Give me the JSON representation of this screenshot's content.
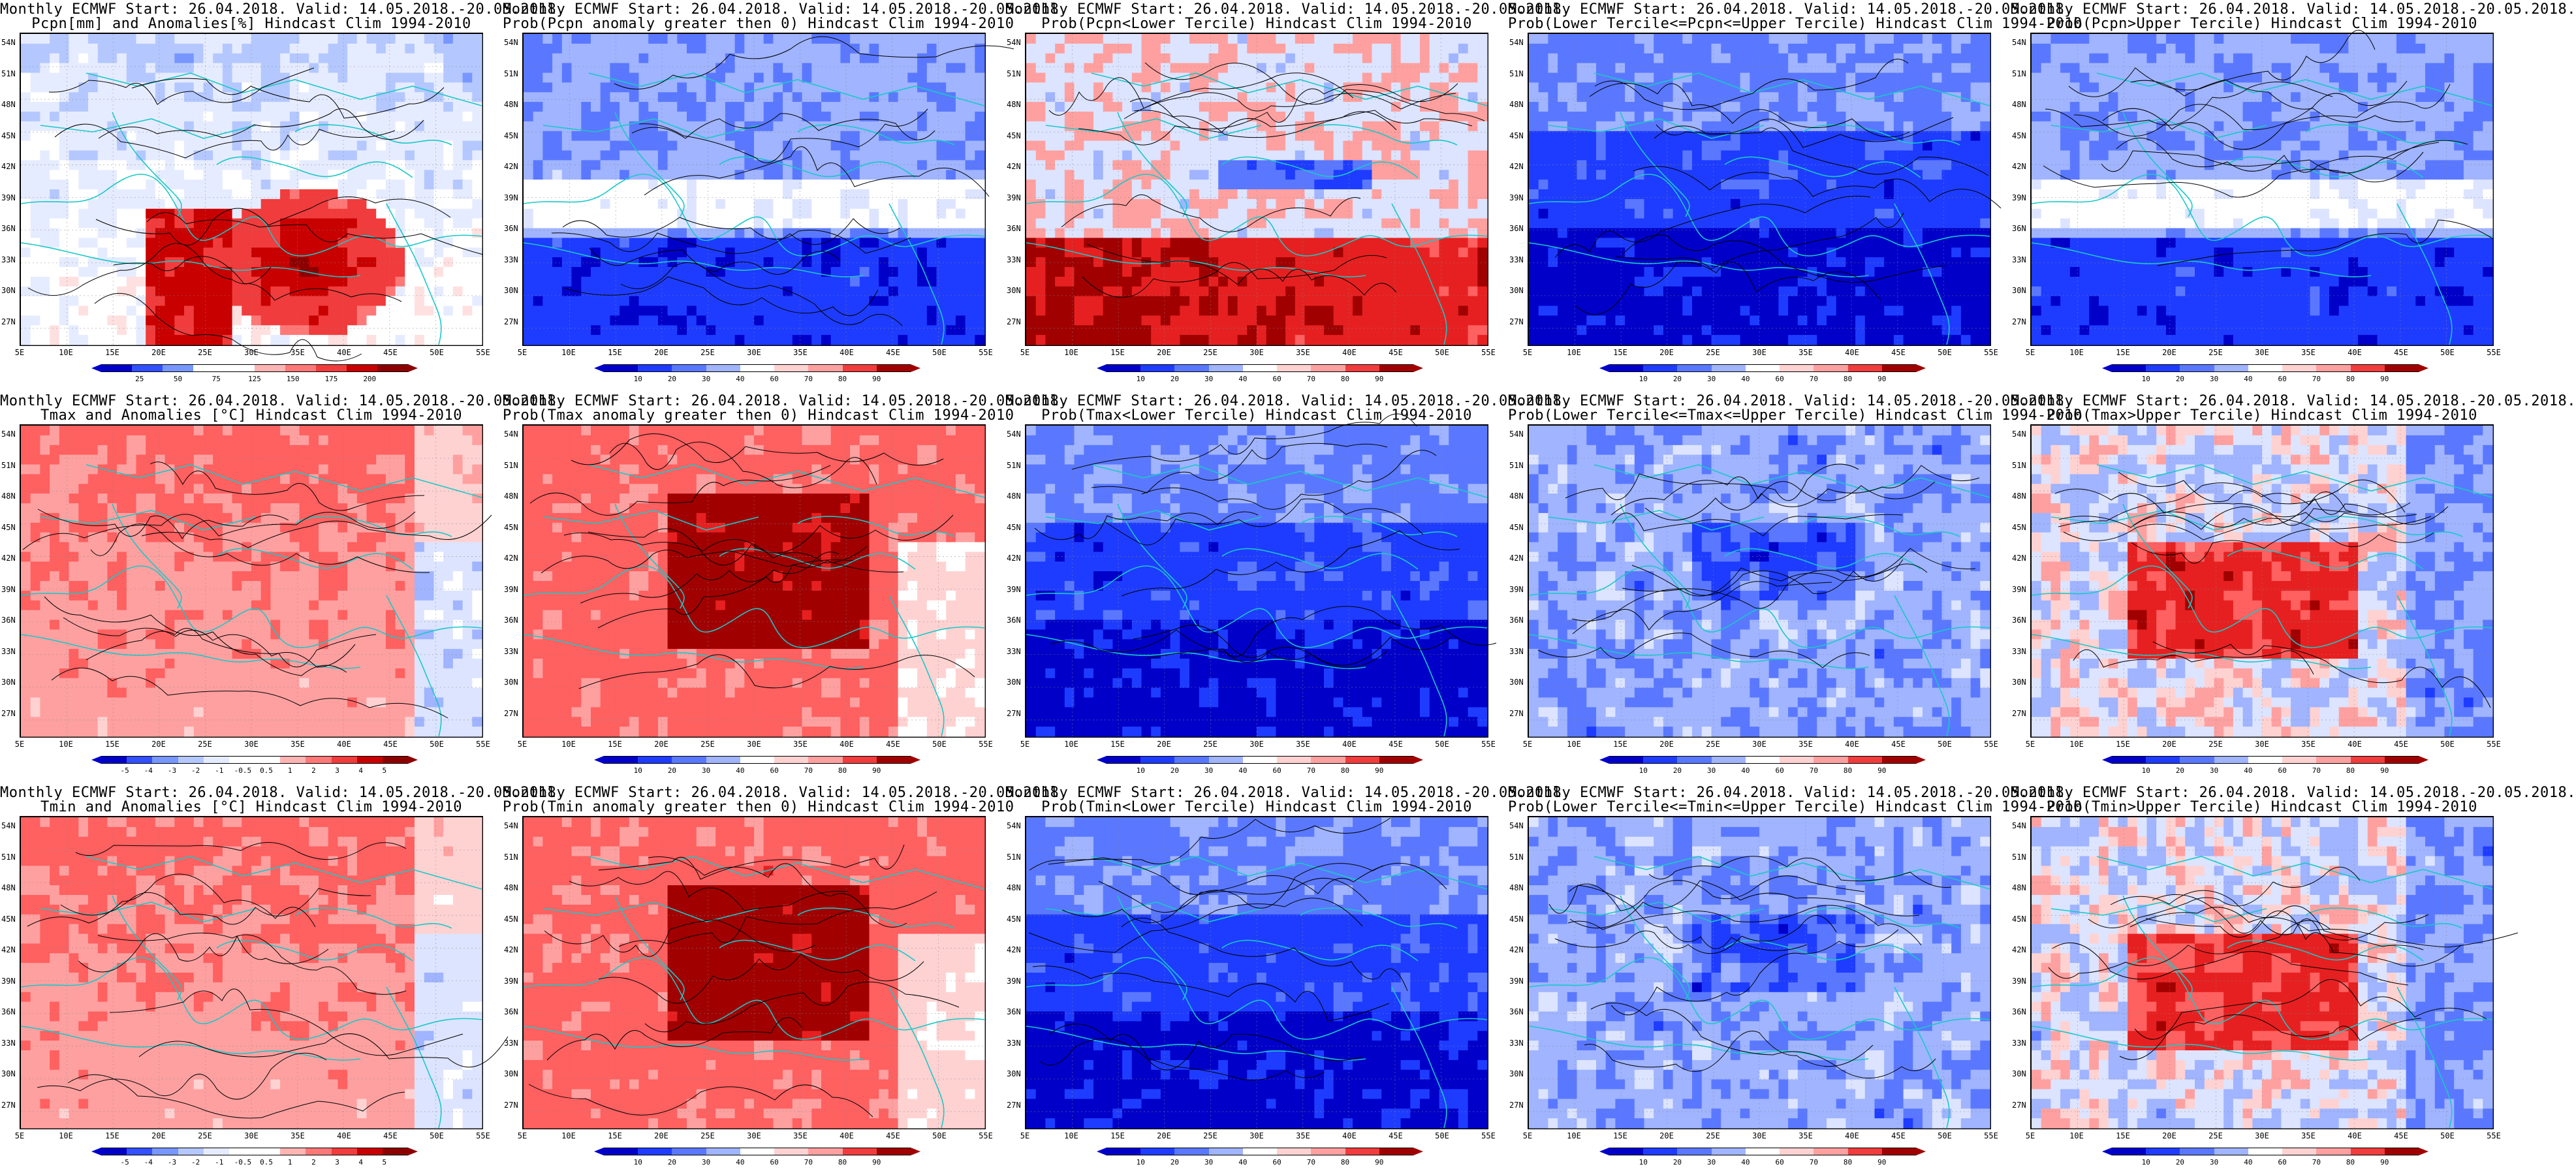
{
  "rows": [
    {
      "panels": [
        {
          "t1": "Monthly ECMWF Start: 26.04.2018. Valid: 14.05.2018.-20.05.2018.",
          "t2": "Pcpn[mm] and Anomalies[%] Hindcast Clim 1994-2010",
          "pattern": "pcpn-anom",
          "bar": "pct",
          "labels": [
            "25",
            "50",
            "75",
            "125",
            "150",
            "175",
            "200"
          ]
        },
        {
          "t1": "Monthly ECMWF Start: 26.04.2018. Valid: 14.05.2018.-20.05.2018.",
          "t2": "Prob(Pcpn anomaly greater then 0) Hindcast Clim 1994-2010",
          "pattern": "pcpn-blue",
          "bar": "prob",
          "labels": [
            "10",
            "20",
            "30",
            "40",
            "60",
            "70",
            "80",
            "90"
          ]
        },
        {
          "t1": "Monthly ECMWF Start: 26.04.2018. Valid: 14.05.2018.-20.05.2018.",
          "t2": "Prob(Pcpn<Lower Tercile) Hindcast Clim 1994-2010",
          "pattern": "pcpn-lower",
          "bar": "prob",
          "labels": [
            "10",
            "20",
            "30",
            "40",
            "60",
            "70",
            "80",
            "90"
          ]
        },
        {
          "t1": "Monthly ECMWF Start: 26.04.2018. Valid: 14.05.2018.-20.05.2018.",
          "t2": "Prob(Lower Tercile<=Pcpn<=Upper Tercile) Hindcast Clim 1994-2010",
          "pattern": "deep-blue",
          "bar": "prob",
          "labels": [
            "10",
            "20",
            "30",
            "40",
            "60",
            "70",
            "80",
            "90"
          ]
        },
        {
          "t1": "Monthly ECMWF Start: 26.04.2018. Valid: 14.05.2018.-20.05.2018.",
          "t2": "Prob(Pcpn>Upper Tercile) Hindcast Clim 1994-2010",
          "pattern": "pcpn-blue",
          "bar": "prob",
          "labels": [
            "10",
            "20",
            "30",
            "40",
            "60",
            "70",
            "80",
            "90"
          ]
        }
      ]
    },
    {
      "panels": [
        {
          "t1": "Monthly ECMWF Start: 26.04.2018. Valid: 14.05.2018.-20.05.2018.",
          "t2": "Tmax and Anomalies [°C] Hindcast Clim 1994-2010",
          "pattern": "warm-light",
          "bar": "anom",
          "labels": [
            "-5",
            "-4",
            "-3",
            "-2",
            "-1",
            "-0.5",
            "0.5",
            "1",
            "2",
            "3",
            "4",
            "5"
          ]
        },
        {
          "t1": "Monthly ECMWF Start: 26.04.2018. Valid: 14.05.2018.-20.05.2018.",
          "t2": "Prob(Tmax anomaly greater then 0) Hindcast Clim 1994-2010",
          "pattern": "warm-strong",
          "bar": "prob",
          "labels": [
            "10",
            "20",
            "30",
            "40",
            "60",
            "70",
            "80",
            "90"
          ]
        },
        {
          "t1": "Monthly ECMWF Start: 26.04.2018. Valid: 14.05.2018.-20.05.2018.",
          "t2": "Prob(Tmax<Lower Tercile) Hindcast Clim 1994-2010",
          "pattern": "deep-blue",
          "bar": "prob",
          "labels": [
            "10",
            "20",
            "30",
            "40",
            "60",
            "70",
            "80",
            "90"
          ]
        },
        {
          "t1": "Monthly ECMWF Start: 26.04.2018. Valid: 14.05.2018.-20.05.2018.",
          "t2": "Prob(Lower Tercile<=Tmax<=Upper Tercile) Hindcast Clim 1994-2010",
          "pattern": "mid-blue",
          "bar": "prob",
          "labels": [
            "10",
            "20",
            "30",
            "40",
            "60",
            "70",
            "80",
            "90"
          ]
        },
        {
          "t1": "Monthly ECMWF Start: 26.04.2018. Valid: 14.05.2018.-20.05.2018.",
          "t2": "Prob(Tmax>Upper Tercile) Hindcast Clim 1994-2010",
          "pattern": "warm-mixed",
          "bar": "prob",
          "labels": [
            "10",
            "20",
            "30",
            "40",
            "60",
            "70",
            "80",
            "90"
          ]
        }
      ]
    },
    {
      "panels": [
        {
          "t1": "Monthly ECMWF Start: 26.04.2018. Valid: 14.05.2018.-20.05.2018.",
          "t2": "Tmin and Anomalies [°C] Hindcast Clim 1994-2010",
          "pattern": "warm-light",
          "bar": "anom",
          "labels": [
            "-5",
            "-4",
            "-3",
            "-2",
            "-1",
            "-0.5",
            "0.5",
            "1",
            "2",
            "3",
            "4",
            "5"
          ]
        },
        {
          "t1": "Monthly ECMWF Start: 26.04.2018. Valid: 14.05.2018.-20.05.2018.",
          "t2": "Prob(Tmin anomaly greater then 0) Hindcast Clim 1994-2010",
          "pattern": "warm-strong",
          "bar": "prob",
          "labels": [
            "10",
            "20",
            "30",
            "40",
            "60",
            "70",
            "80",
            "90"
          ]
        },
        {
          "t1": "Monthly ECMWF Start: 26.04.2018. Valid: 14.05.2018.-20.05.2018.",
          "t2": "Prob(Tmin<Lower Tercile) Hindcast Clim 1994-2010",
          "pattern": "deep-blue",
          "bar": "prob",
          "labels": [
            "10",
            "20",
            "30",
            "40",
            "60",
            "70",
            "80",
            "90"
          ]
        },
        {
          "t1": "Monthly ECMWF Start: 26.04.2018. Valid: 14.05.2018.-20.05.2018.",
          "t2": "Prob(Lower Tercile<=Tmin<=Upper Tercile) Hindcast Clim 1994-2010",
          "pattern": "mid-blue",
          "bar": "prob",
          "labels": [
            "10",
            "20",
            "30",
            "40",
            "60",
            "70",
            "80",
            "90"
          ]
        },
        {
          "t1": "Monthly ECMWF Start: 26.04.2018. Valid: 14.05.2018.-20.05.2018.",
          "t2": "Prob(Tmin>Upper Tercile) Hindcast Clim 1994-2010",
          "pattern": "warm-mixed",
          "bar": "prob",
          "labels": [
            "10",
            "20",
            "30",
            "40",
            "60",
            "70",
            "80",
            "90"
          ]
        }
      ]
    }
  ],
  "lat_labels": [
    "54N",
    "51N",
    "48N",
    "45N",
    "42N",
    "39N",
    "36N",
    "33N",
    "30N",
    "27N"
  ],
  "lon_labels": [
    "5E",
    "10E",
    "15E",
    "20E",
    "25E",
    "30E",
    "35E",
    "40E",
    "45E",
    "50E",
    "55E"
  ],
  "colors": {
    "coast": "#19c8c8",
    "contour": "#000000",
    "blue_scale": [
      "#0000c8",
      "#1e3cff",
      "#5a78ff",
      "#a0b4ff",
      "#dce4ff",
      "#ffffff"
    ],
    "red_scale": [
      "#ffffff",
      "#ffd2d2",
      "#ffa0a0",
      "#ff6060",
      "#e62020",
      "#a00000"
    ],
    "pct_scale": [
      "#0000c8",
      "#3250ff",
      "#7896ff",
      "#b4c8ff",
      "#e6ecff",
      "#ffffff",
      "#ffe0e0",
      "#ffb4b4",
      "#ff7878",
      "#f03c3c",
      "#c80000",
      "#8c0000"
    ]
  }
}
